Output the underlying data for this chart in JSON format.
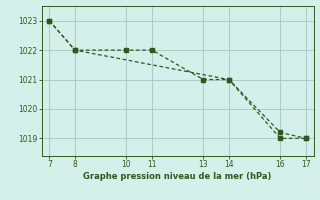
{
  "line1_x": [
    7,
    8,
    10,
    11,
    13,
    14,
    16,
    17
  ],
  "line1_y": [
    1023,
    1022,
    1022,
    1022,
    1021,
    1021,
    1019,
    1019
  ],
  "line2_x": [
    7,
    8,
    14,
    16,
    17
  ],
  "line2_y": [
    1023,
    1022,
    1021,
    1019.2,
    1019
  ],
  "line_color": "#2d5a1b",
  "bg_color": "#d5f0ea",
  "grid_color": "#aaccc6",
  "xlabel": "Graphe pression niveau de la mer (hPa)",
  "xticks": [
    7,
    8,
    10,
    11,
    13,
    14,
    16,
    17
  ],
  "yticks": [
    1019,
    1020,
    1021,
    1022,
    1023
  ],
  "xlim": [
    6.7,
    17.3
  ],
  "ylim": [
    1018.4,
    1023.5
  ]
}
